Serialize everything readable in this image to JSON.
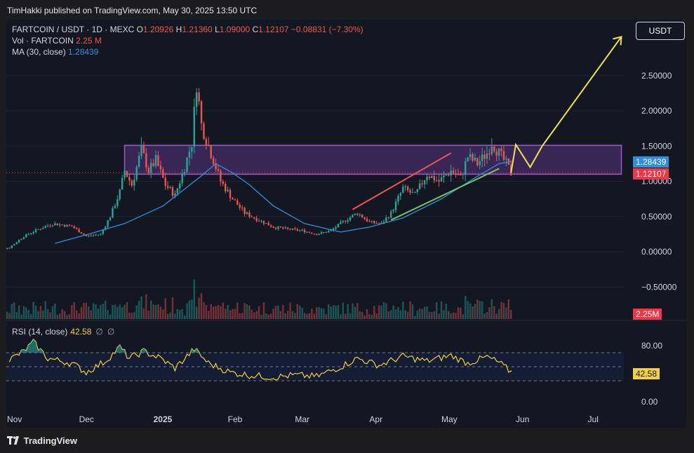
{
  "header": {
    "published_text": "TimHakki published on TradingView.com, May 30, 2025 13:50 UTC"
  },
  "toolbar": {
    "currency_button": "USDT"
  },
  "legend": {
    "symbol": "FARTCOIN / USDT · 1D · MEXC",
    "o_label": "O",
    "o_value": "1.20926",
    "h_label": "H",
    "h_value": "1.21360",
    "l_label": "L",
    "l_value": "1.09000",
    "c_label": "C",
    "c_value": "1.12107",
    "change": "−0.08831 (−7.30%)",
    "vol_label": "Vol · FARTCOIN",
    "vol_value": "2.25 M",
    "ma_label": "MA (30, close)",
    "ma_value": "1.28439"
  },
  "rsi": {
    "label": "RSI (14, close)",
    "value": "42.58",
    "icon1": "∅",
    "icon2": "∅"
  },
  "tags": {
    "ma": "1.28439",
    "price": "1.12107",
    "volume": "2.25M",
    "rsi": "42.58"
  },
  "footer": {
    "brand": "TradingView"
  },
  "colors": {
    "up": "#26a69a",
    "down": "#ef5350",
    "ma": "#2f8fdd",
    "rsi": "#f4d03f",
    "zone": "#9b59d0",
    "projection": "#f4e04d",
    "background": "#131722"
  },
  "chart_data": [
    {
      "type": "candlestick",
      "symbol": "FARTCOIN / USDT",
      "interval": "1D",
      "y_axis": {
        "ticks": [
          0.0,
          0.5,
          1.0,
          1.5,
          2.0,
          2.5,
          -0.5
        ],
        "tick_labels": [
          "0.00000",
          "0.50000",
          "1.00000",
          "1.50000",
          "2.00000",
          "2.50000",
          "−0.50000"
        ]
      },
      "x_axis": {
        "tick_labels": [
          "Nov",
          "Dec",
          "2025",
          "Feb",
          "Mar",
          "Apr",
          "May",
          "Jun",
          "Jul"
        ]
      },
      "price_path": [
        {
          "d": "2024-10-25",
          "p": 0.02
        },
        {
          "d": "2024-11-02",
          "p": 0.06
        },
        {
          "d": "2024-11-08",
          "p": 0.22
        },
        {
          "d": "2024-11-14",
          "p": 0.32
        },
        {
          "d": "2024-11-20",
          "p": 0.4
        },
        {
          "d": "2024-11-28",
          "p": 0.36
        },
        {
          "d": "2024-12-04",
          "p": 0.22
        },
        {
          "d": "2024-12-10",
          "p": 0.25
        },
        {
          "d": "2024-12-14",
          "p": 0.5
        },
        {
          "d": "2024-12-18",
          "p": 0.85
        },
        {
          "d": "2024-12-20",
          "p": 1.15
        },
        {
          "d": "2024-12-23",
          "p": 0.95
        },
        {
          "d": "2024-12-27",
          "p": 1.45
        },
        {
          "d": "2024-12-30",
          "p": 1.15
        },
        {
          "d": "2025-01-02",
          "p": 1.3
        },
        {
          "d": "2025-01-06",
          "p": 0.95
        },
        {
          "d": "2025-01-10",
          "p": 0.8
        },
        {
          "d": "2025-01-14",
          "p": 1.2
        },
        {
          "d": "2025-01-17",
          "p": 1.55
        },
        {
          "d": "2025-01-19",
          "p": 2.4
        },
        {
          "d": "2025-01-21",
          "p": 1.8
        },
        {
          "d": "2025-01-25",
          "p": 1.4
        },
        {
          "d": "2025-01-29",
          "p": 1.0
        },
        {
          "d": "2025-02-03",
          "p": 0.75
        },
        {
          "d": "2025-02-08",
          "p": 0.55
        },
        {
          "d": "2025-02-14",
          "p": 0.45
        },
        {
          "d": "2025-02-20",
          "p": 0.35
        },
        {
          "d": "2025-02-26",
          "p": 0.32
        },
        {
          "d": "2025-03-04",
          "p": 0.3
        },
        {
          "d": "2025-03-10",
          "p": 0.25
        },
        {
          "d": "2025-03-16",
          "p": 0.3
        },
        {
          "d": "2025-03-22",
          "p": 0.45
        },
        {
          "d": "2025-03-27",
          "p": 0.55
        },
        {
          "d": "2025-04-01",
          "p": 0.42
        },
        {
          "d": "2025-04-06",
          "p": 0.4
        },
        {
          "d": "2025-04-10",
          "p": 0.55
        },
        {
          "d": "2025-04-15",
          "p": 0.9
        },
        {
          "d": "2025-04-20",
          "p": 0.8
        },
        {
          "d": "2025-04-25",
          "p": 1.1
        },
        {
          "d": "2025-04-30",
          "p": 1.0
        },
        {
          "d": "2025-05-05",
          "p": 1.15
        },
        {
          "d": "2025-05-09",
          "p": 1.05
        },
        {
          "d": "2025-05-12",
          "p": 1.35
        },
        {
          "d": "2025-05-16",
          "p": 1.25
        },
        {
          "d": "2025-05-20",
          "p": 1.4
        },
        {
          "d": "2025-05-22",
          "p": 1.55
        },
        {
          "d": "2025-05-25",
          "p": 1.4
        },
        {
          "d": "2025-05-28",
          "p": 1.25
        },
        {
          "d": "2025-05-30",
          "p": 1.12107
        }
      ],
      "moving_average": {
        "name": "MA (30, close)",
        "last": 1.28439,
        "points": [
          {
            "d": "2024-11-21",
            "p": 0.12
          },
          {
            "d": "2024-12-05",
            "p": 0.25
          },
          {
            "d": "2024-12-20",
            "p": 0.4
          },
          {
            "d": "2025-01-05",
            "p": 0.65
          },
          {
            "d": "2025-01-20",
            "p": 1.05
          },
          {
            "d": "2025-01-27",
            "p": 1.25
          },
          {
            "d": "2025-02-03",
            "p": 1.12
          },
          {
            "d": "2025-02-10",
            "p": 0.95
          },
          {
            "d": "2025-02-20",
            "p": 0.65
          },
          {
            "d": "2025-03-05",
            "p": 0.4
          },
          {
            "d": "2025-03-20",
            "p": 0.28
          },
          {
            "d": "2025-04-01",
            "p": 0.35
          },
          {
            "d": "2025-04-15",
            "p": 0.48
          },
          {
            "d": "2025-05-01",
            "p": 0.75
          },
          {
            "d": "2025-05-15",
            "p": 1.05
          },
          {
            "d": "2025-05-25",
            "p": 1.25
          },
          {
            "d": "2025-05-30",
            "p": 1.28
          }
        ]
      },
      "last_price": 1.12107,
      "zone": {
        "from_date": "2024-12-20",
        "to_date": "2025-07-15",
        "low": 1.1,
        "high": 1.51
      },
      "trend_lines": [
        {
          "color": "#ef5350",
          "from": {
            "d": "2025-03-25",
            "p": 0.6
          },
          "to": {
            "d": "2025-05-05",
            "p": 1.4
          }
        },
        {
          "color": "#7cc26a",
          "from": {
            "d": "2025-04-10",
            "p": 0.45
          },
          "to": {
            "d": "2025-05-25",
            "p": 1.18
          }
        }
      ],
      "projection": [
        {
          "d": "2025-05-30",
          "p": 1.12
        },
        {
          "d": "2025-06-01",
          "p": 1.52
        },
        {
          "d": "2025-06-07",
          "p": 1.2
        },
        {
          "d": "2025-06-12",
          "p": 1.5
        },
        {
          "d": "2025-07-15",
          "p": 3.05
        }
      ]
    },
    {
      "type": "bar",
      "name": "Vol · FARTCOIN",
      "last": 2.25,
      "unit": "M"
    },
    {
      "type": "line",
      "name": "RSI (14, close)",
      "last": 42.58,
      "y_axis": {
        "tick_labels": [
          "80.00",
          "0.00"
        ],
        "bands": [
          70,
          50,
          30
        ]
      },
      "points": [
        {
          "d": "2024-11-02",
          "v": 60
        },
        {
          "d": "2024-11-08",
          "v": 72
        },
        {
          "d": "2024-11-12",
          "v": 85
        },
        {
          "d": "2024-11-18",
          "v": 62
        },
        {
          "d": "2024-11-28",
          "v": 55
        },
        {
          "d": "2024-12-04",
          "v": 42
        },
        {
          "d": "2024-12-12",
          "v": 58
        },
        {
          "d": "2024-12-18",
          "v": 78
        },
        {
          "d": "2024-12-22",
          "v": 62
        },
        {
          "d": "2024-12-28",
          "v": 72
        },
        {
          "d": "2025-01-04",
          "v": 62
        },
        {
          "d": "2025-01-10",
          "v": 48
        },
        {
          "d": "2025-01-18",
          "v": 75
        },
        {
          "d": "2025-01-24",
          "v": 55
        },
        {
          "d": "2025-02-02",
          "v": 42
        },
        {
          "d": "2025-02-10",
          "v": 38
        },
        {
          "d": "2025-02-20",
          "v": 35
        },
        {
          "d": "2025-03-01",
          "v": 38
        },
        {
          "d": "2025-03-10",
          "v": 36
        },
        {
          "d": "2025-03-20",
          "v": 50
        },
        {
          "d": "2025-03-27",
          "v": 62
        },
        {
          "d": "2025-04-05",
          "v": 52
        },
        {
          "d": "2025-04-15",
          "v": 65
        },
        {
          "d": "2025-04-25",
          "v": 58
        },
        {
          "d": "2025-05-05",
          "v": 66
        },
        {
          "d": "2025-05-12",
          "v": 55
        },
        {
          "d": "2025-05-20",
          "v": 64
        },
        {
          "d": "2025-05-25",
          "v": 56
        },
        {
          "d": "2025-05-30",
          "v": 42.58
        }
      ]
    }
  ]
}
